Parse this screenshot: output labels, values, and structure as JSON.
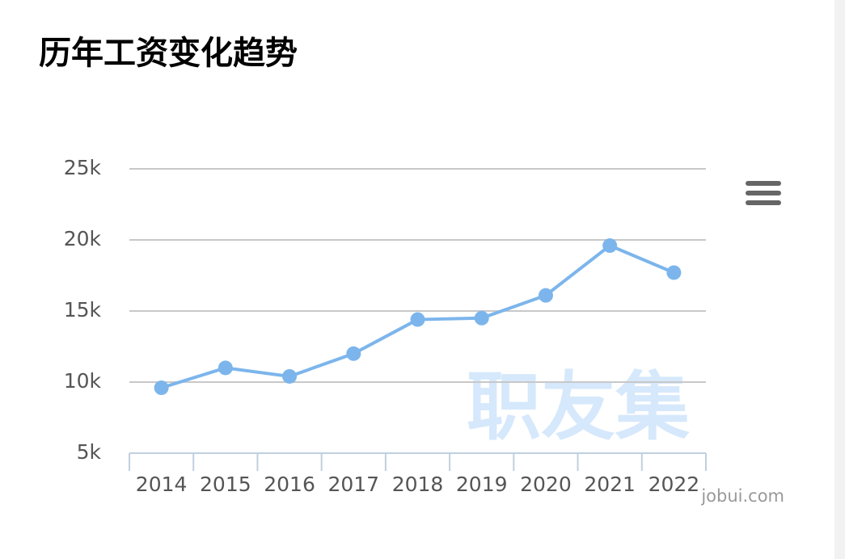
{
  "chart_data": {
    "type": "line",
    "title": "历年工资变化趋势",
    "categories": [
      "2014",
      "2015",
      "2016",
      "2017",
      "2018",
      "2019",
      "2020",
      "2021",
      "2022"
    ],
    "values": [
      9600,
      11000,
      10400,
      12000,
      14400,
      14500,
      16100,
      19600,
      17700
    ],
    "color": "#7cb5ec",
    "ylim": [
      5000,
      25000
    ],
    "yticks": [
      {
        "value": 5000,
        "label": "5k"
      },
      {
        "value": 10000,
        "label": "10k"
      },
      {
        "value": 15000,
        "label": "15k"
      },
      {
        "value": 20000,
        "label": "20k"
      },
      {
        "value": 25000,
        "label": "25k"
      }
    ],
    "grid": true,
    "watermark": "职友集",
    "credit": "jobui.com"
  }
}
